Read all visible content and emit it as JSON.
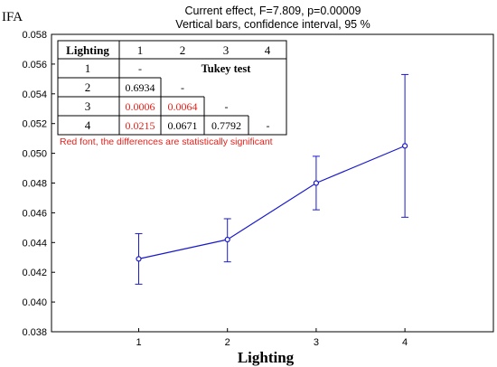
{
  "chart_data": {
    "type": "line",
    "title": "Current effect, F=7.809,   p=0.00009",
    "subtitle": "Vertical bars, confidence interval, 95 %",
    "ylabel": "IFA",
    "xlabel": "Lighting",
    "categories": [
      "1",
      "2",
      "3",
      "4"
    ],
    "series": [
      {
        "values": [
          0.0429,
          0.0442,
          0.048,
          0.0505
        ],
        "ci_low": [
          0.0412,
          0.0427,
          0.0462,
          0.0457
        ],
        "ci_high": [
          0.0446,
          0.0456,
          0.0498,
          0.0553
        ]
      }
    ],
    "ylim": [
      0.038,
      0.058
    ],
    "yticks": [
      "0.038",
      "0.040",
      "0.042",
      "0.044",
      "0.046",
      "0.048",
      "0.050",
      "0.052",
      "0.054",
      "0.056",
      "0.058"
    ],
    "grid": false,
    "colors": {
      "line": "#1a1acc",
      "significant": "#e8201a",
      "text": "#000000"
    }
  },
  "tukey": {
    "header": [
      "Lighting",
      "1",
      "2",
      "3",
      "4"
    ],
    "title": "Tukey test",
    "rows": [
      {
        "label": "1",
        "cells": [
          "-"
        ]
      },
      {
        "label": "2",
        "cells": [
          "0.6934",
          "-"
        ]
      },
      {
        "label": "3",
        "cells": [
          "0.0006",
          "0.0064",
          "-"
        ]
      },
      {
        "label": "4",
        "cells": [
          "0.0215",
          "0.0671",
          "0.7792",
          "-"
        ]
      }
    ],
    "significant": [
      [
        2,
        0
      ],
      [
        2,
        1
      ],
      [
        3,
        0
      ]
    ],
    "note": "Red font, the differences are statistically significant"
  }
}
